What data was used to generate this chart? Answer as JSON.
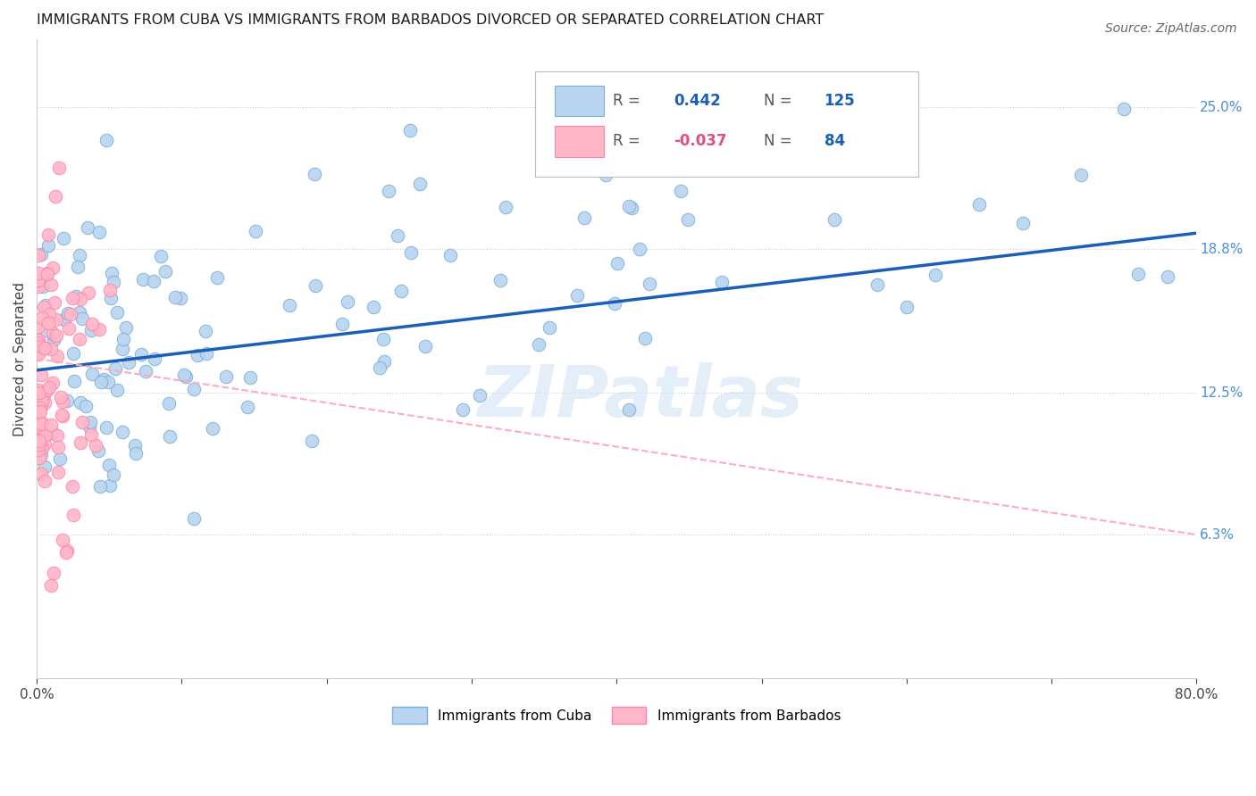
{
  "title": "IMMIGRANTS FROM CUBA VS IMMIGRANTS FROM BARBADOS DIVORCED OR SEPARATED CORRELATION CHART",
  "source": "Source: ZipAtlas.com",
  "ylabel": "Divorced or Separated",
  "xlim": [
    0.0,
    80.0
  ],
  "ylim": [
    0.0,
    28.0
  ],
  "ytick_positions": [
    6.3,
    12.5,
    18.8,
    25.0
  ],
  "ytick_labels": [
    "6.3%",
    "12.5%",
    "18.8%",
    "25.0%"
  ],
  "cuba_color": "#b8d4f0",
  "cuba_edge_color": "#7aaed6",
  "barbados_color": "#ffb6c8",
  "barbados_edge_color": "#ff85a8",
  "cuba_line_color": "#1a5eb8",
  "barbados_line_color": "#ffaac0",
  "grid_color": "#d0d0d0",
  "R_cuba": 0.442,
  "N_cuba": 125,
  "R_barbados": -0.037,
  "N_barbados": 84,
  "legend_label_cuba": "Immigrants from Cuba",
  "legend_label_barbados": "Immigrants from Barbados",
  "watermark": "ZIPatlas",
  "cuba_line_y0": 13.5,
  "cuba_line_y1": 19.5,
  "barbados_line_y0": 14.0,
  "barbados_line_y1": 6.3,
  "barbados_line_x0": 0.0,
  "barbados_line_x1": 80.0
}
